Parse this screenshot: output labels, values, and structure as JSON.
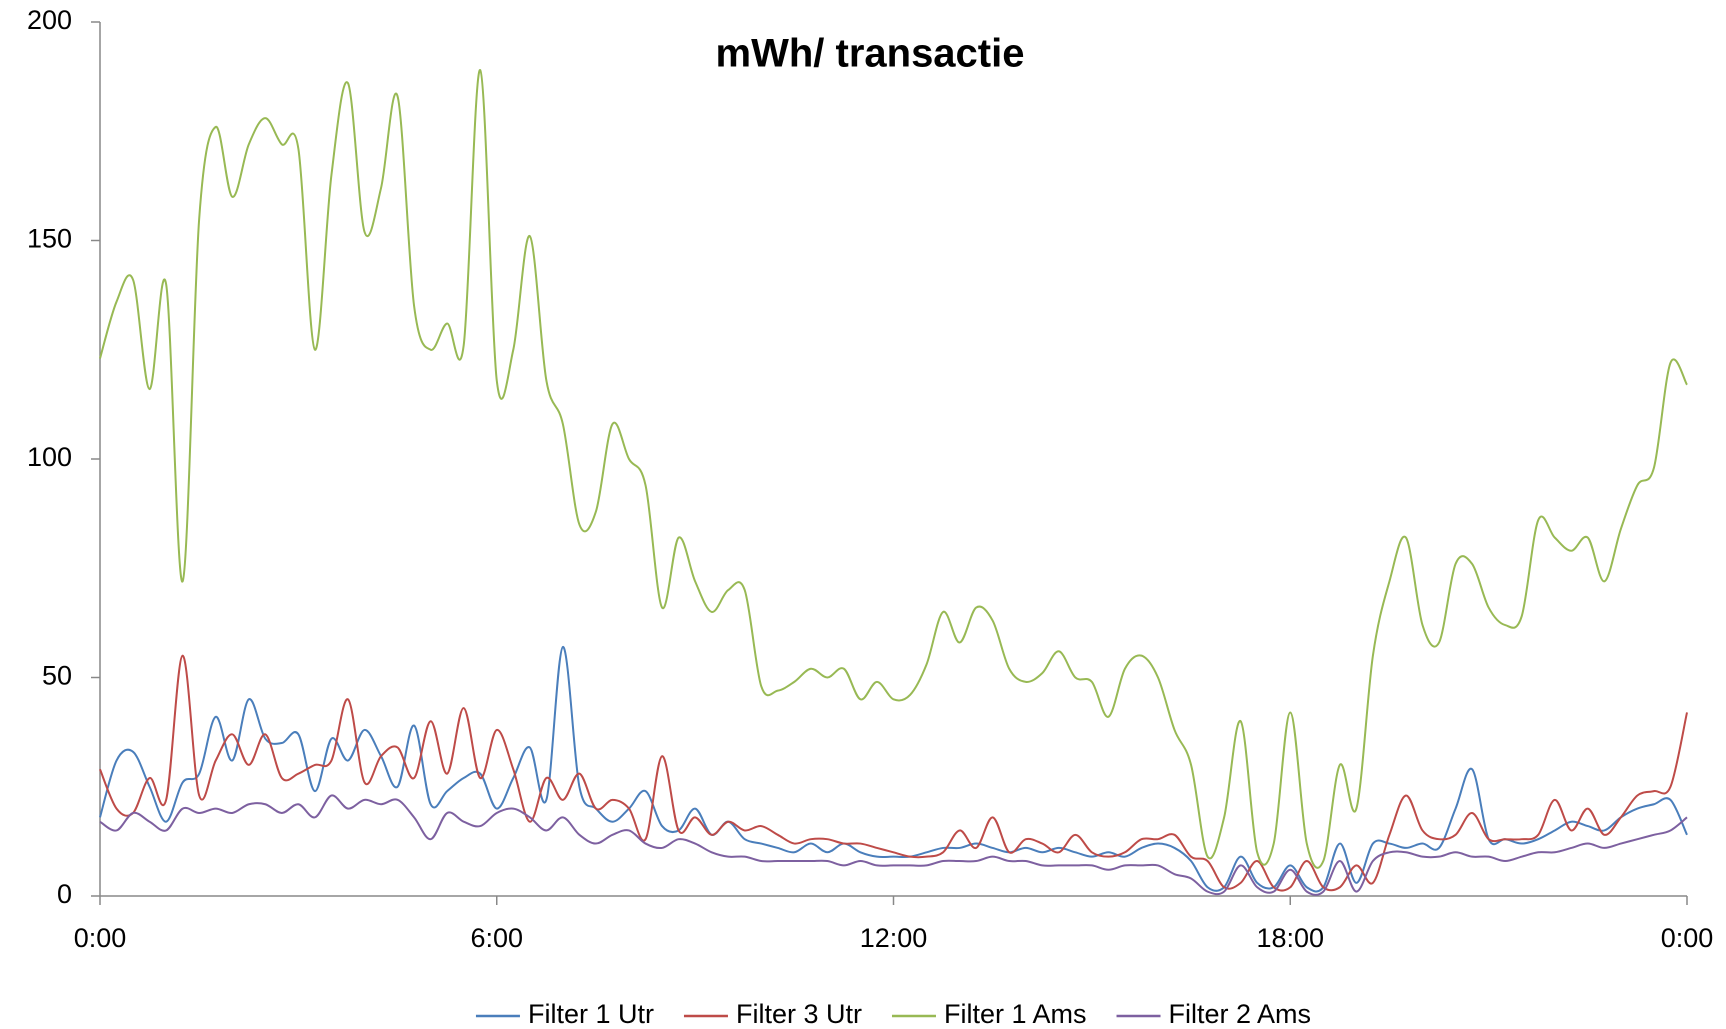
{
  "chart_data": {
    "type": "line",
    "title": "mWh/ transactie",
    "categories": [
      "0:00",
      null,
      null,
      null,
      null,
      null,
      null,
      null,
      null,
      null,
      null,
      null,
      null,
      null,
      null,
      null,
      null,
      null,
      null,
      null,
      null,
      null,
      null,
      null,
      "6:00",
      null,
      null,
      null,
      null,
      null,
      null,
      null,
      null,
      null,
      null,
      null,
      null,
      null,
      null,
      null,
      null,
      null,
      null,
      null,
      null,
      null,
      null,
      null,
      "12:00",
      null,
      null,
      null,
      null,
      null,
      null,
      null,
      null,
      null,
      null,
      null,
      null,
      null,
      null,
      null,
      null,
      null,
      null,
      null,
      null,
      null,
      null,
      null,
      "18:00",
      null,
      null,
      null,
      null,
      null,
      null,
      null,
      null,
      null,
      null,
      null,
      null,
      null,
      null,
      null,
      null,
      null,
      null,
      null,
      null,
      null,
      null,
      null,
      "0:00"
    ],
    "series": [
      {
        "name": "Filter 1 Utr",
        "color": "#4a7ebb",
        "values": [
          18,
          31,
          33,
          25,
          17,
          26,
          28,
          41,
          31,
          45,
          36,
          35,
          37,
          24,
          36,
          31,
          38,
          32,
          25,
          39,
          21,
          24,
          27,
          28,
          20,
          27,
          34,
          22,
          57,
          25,
          20,
          17,
          20,
          24,
          16,
          15,
          20,
          14,
          17,
          13,
          12,
          11,
          10,
          12,
          10,
          12,
          10,
          9,
          9,
          9,
          10,
          11,
          11,
          12,
          11,
          10,
          11,
          10,
          11,
          10,
          9,
          10,
          9,
          11,
          12,
          11,
          8,
          2,
          2,
          9,
          3,
          2,
          7,
          2,
          2,
          12,
          3,
          12,
          12,
          11,
          12,
          11,
          20,
          29,
          13,
          13,
          12,
          13,
          15,
          17,
          16,
          15,
          18,
          20,
          21,
          22,
          14
        ]
      },
      {
        "name": "Filter 3 Utr",
        "color": "#be4b48",
        "values": [
          29,
          20,
          19,
          27,
          22,
          55,
          23,
          31,
          37,
          30,
          37,
          27,
          28,
          30,
          31,
          45,
          26,
          32,
          34,
          27,
          40,
          28,
          43,
          27,
          38,
          29,
          17,
          27,
          22,
          28,
          20,
          22,
          20,
          13,
          32,
          15,
          18,
          14,
          17,
          15,
          16,
          14,
          12,
          13,
          13,
          12,
          12,
          11,
          10,
          9,
          9,
          10,
          15,
          11,
          18,
          10,
          13,
          12,
          10,
          14,
          10,
          9,
          10,
          13,
          13,
          14,
          9,
          8,
          2,
          3,
          8,
          2,
          2,
          8,
          2,
          2,
          7,
          3,
          14,
          23,
          15,
          13,
          14,
          19,
          13,
          13,
          13,
          14,
          22,
          15,
          20,
          14,
          18,
          23,
          24,
          25,
          42
        ]
      },
      {
        "name": "Filter 1 Ams",
        "color": "#98b954",
        "values": [
          123,
          136,
          141,
          116,
          140,
          72,
          155,
          176,
          160,
          172,
          178,
          172,
          171,
          125,
          165,
          186,
          152,
          162,
          183,
          135,
          125,
          131,
          126,
          189,
          118,
          125,
          151,
          118,
          108,
          85,
          88,
          108,
          100,
          94,
          66,
          82,
          72,
          65,
          70,
          70,
          48,
          47,
          49,
          52,
          50,
          52,
          45,
          49,
          45,
          46,
          53,
          65,
          58,
          66,
          63,
          52,
          49,
          51,
          56,
          50,
          49,
          41,
          52,
          55,
          50,
          38,
          30,
          9,
          18,
          40,
          10,
          12,
          42,
          12,
          8,
          30,
          20,
          55,
          72,
          82,
          62,
          58,
          76,
          76,
          66,
          62,
          64,
          86,
          82,
          79,
          82,
          72,
          84,
          94,
          98,
          122,
          117
        ]
      },
      {
        "name": "Filter 2 Ams",
        "color": "#7d60a0",
        "values": [
          17,
          15,
          19,
          17,
          15,
          20,
          19,
          20,
          19,
          21,
          21,
          19,
          21,
          18,
          23,
          20,
          22,
          21,
          22,
          18,
          13,
          19,
          17,
          16,
          19,
          20,
          18,
          15,
          18,
          14,
          12,
          14,
          15,
          12,
          11,
          13,
          12,
          10,
          9,
          9,
          8,
          8,
          8,
          8,
          8,
          7,
          8,
          7,
          7,
          7,
          7,
          8,
          8,
          8,
          9,
          8,
          8,
          7,
          7,
          7,
          7,
          6,
          7,
          7,
          7,
          5,
          4,
          1,
          1,
          7,
          2,
          1,
          6,
          1,
          1,
          8,
          1,
          8,
          10,
          10,
          9,
          9,
          10,
          9,
          9,
          8,
          9,
          10,
          10,
          11,
          12,
          11,
          12,
          13,
          14,
          15,
          18
        ]
      }
    ],
    "ylim": [
      0,
      200
    ],
    "yticks": [
      0,
      50,
      100,
      150,
      200
    ],
    "grid": false,
    "legend": "bottom"
  }
}
